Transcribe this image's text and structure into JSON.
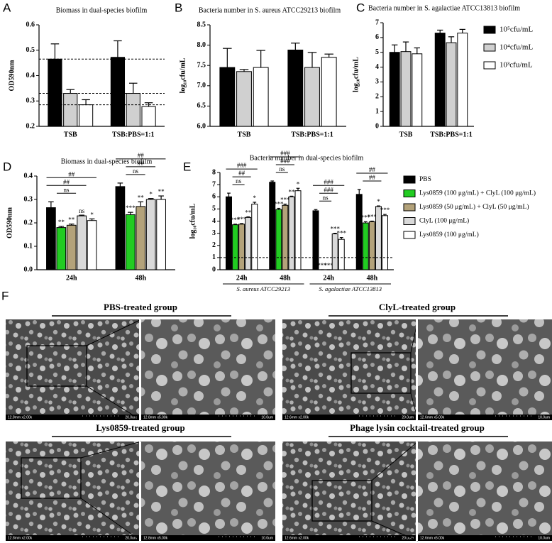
{
  "chart_data": [
    {
      "type": "bar",
      "panel_label": "A",
      "title": "Biomass in dual-species biofilm",
      "y_label": "OD590nm",
      "categories": [
        "TSB",
        "TSB:PBS=1:1"
      ],
      "series": [
        {
          "color": "#000000",
          "values": [
            0.465,
            0.472
          ],
          "errors": [
            0.06,
            0.065
          ]
        },
        {
          "color": "#d0d0d0",
          "values": [
            0.33,
            0.33
          ],
          "errors": [
            0.015,
            0.04
          ]
        },
        {
          "color": "#ffffff",
          "values": [
            0.285,
            0.278
          ],
          "errors": [
            0.02,
            0.015
          ]
        }
      ],
      "reference_lines": [
        0.465,
        0.33,
        0.285
      ],
      "ylim": [
        0.2,
        0.6
      ],
      "yticks": [
        0.2,
        0.3,
        0.4,
        0.5,
        0.6
      ]
    },
    {
      "type": "bar",
      "panel_label": "B",
      "title": "Bacteria number in S. aureus ATCC29213 biofilm",
      "y_label": "log₁₀cfu/mL",
      "categories": [
        "TSB",
        "TSB:PBS=1:1"
      ],
      "series": [
        {
          "color": "#000000",
          "values": [
            7.45,
            7.88
          ],
          "errors": [
            0.47,
            0.17
          ]
        },
        {
          "color": "#d0d0d0",
          "values": [
            7.35,
            7.45
          ],
          "errors": [
            0.05,
            0.37
          ]
        },
        {
          "color": "#ffffff",
          "values": [
            7.45,
            7.7
          ],
          "errors": [
            0.42,
            0.08
          ]
        }
      ],
      "ylim": [
        6.0,
        8.5
      ],
      "yticks": [
        {
          "value": 6.0,
          "label": "6.0"
        },
        {
          "value": 6.5,
          "label": "6.5"
        },
        {
          "value": 7.0,
          "label": "7.0"
        },
        {
          "value": 7.5,
          "label": "7.5"
        },
        {
          "value": 8.0,
          "label": "8.0"
        },
        {
          "value": 8.5,
          "label": "8.5"
        }
      ]
    },
    {
      "type": "bar",
      "panel_label": "C",
      "title": "Bacteria number in S. agalactiae ATCC13813 biofilm",
      "y_label": "log₁₀cfu/mL",
      "categories": [
        "TSB",
        "TSB:PBS=1:1"
      ],
      "series": [
        {
          "name": "10⁵cfu/mL",
          "color": "#000000",
          "values": [
            5.0,
            6.3
          ],
          "errors": [
            0.5,
            0.2
          ]
        },
        {
          "name": "10⁴cfu/mL",
          "color": "#d0d0d0",
          "values": [
            5.05,
            5.65
          ],
          "errors": [
            0.65,
            0.4
          ]
        },
        {
          "name": "10³cfu/mL",
          "color": "#ffffff",
          "values": [
            4.9,
            6.3
          ],
          "errors": [
            0.4,
            0.25
          ]
        }
      ],
      "legend": "right",
      "ylim": [
        0,
        7
      ],
      "yticks": [
        0,
        1,
        2,
        3,
        4,
        5,
        6,
        7
      ]
    },
    {
      "type": "bar",
      "panel_label": "D",
      "title": "Biomass in dual-species biofilm",
      "y_label": "OD590nm",
      "categories": [
        "24h",
        "48h"
      ],
      "series": [
        {
          "color": "#000000",
          "values": [
            0.265,
            0.355
          ],
          "errors": [
            0.025,
            0.015
          ],
          "significance": [
            null,
            null
          ]
        },
        {
          "color": "#22cc22",
          "values": [
            0.18,
            0.235
          ],
          "errors": [
            0.005,
            0.01
          ],
          "significance": [
            "**",
            "***"
          ]
        },
        {
          "color": "#b3a27a",
          "values": [
            0.19,
            0.27
          ],
          "errors": [
            0.005,
            0.02
          ],
          "significance": [
            "**",
            "**"
          ]
        },
        {
          "color": "#d9d9d9",
          "values": [
            0.23,
            0.3
          ],
          "errors": [
            0.003,
            0.004
          ],
          "significance": [
            "ns",
            "*"
          ]
        },
        {
          "color": "#ffffff",
          "values": [
            0.21,
            0.3
          ],
          "errors": [
            0.007,
            0.015
          ],
          "significance": [
            "*",
            "**"
          ]
        }
      ],
      "comparisons": [
        [
          {
            "pair": [
              1,
              2
            ],
            "label": "ns"
          },
          {
            "pair": [
              0,
              3
            ],
            "label": "##"
          },
          {
            "pair": [
              0,
              4
            ],
            "label": "##"
          }
        ],
        [
          {
            "pair": [
              1,
              2
            ],
            "label": "ns"
          },
          {
            "pair": [
              1,
              3
            ],
            "label": "##"
          },
          {
            "pair": [
              0,
              4
            ],
            "label": "##"
          }
        ]
      ],
      "ylim": [
        0,
        0.4
      ],
      "yticks": [
        {
          "value": 0,
          "label": "0.0"
        },
        0.1,
        0.2,
        0.3,
        0.4
      ]
    },
    {
      "type": "bar",
      "panel_label": "E",
      "title": "Bacteria number in dual-species biofilm",
      "y_label": "log₁₀cfu/mL",
      "categories": [
        "24h",
        "48h",
        "24h",
        "48h"
      ],
      "groups": [
        {
          "label": "S. aureus ATCC29213",
          "span": [
            0,
            1
          ]
        },
        {
          "label": "S. agalactiae ATCC13813",
          "span": [
            2,
            3
          ]
        }
      ],
      "series": [
        {
          "name": "PBS",
          "color": "#000000",
          "values": [
            6.0,
            7.2,
            4.85,
            6.2
          ],
          "errors": [
            0.3,
            0.1,
            0.1,
            0.4
          ],
          "significance": [
            null,
            null,
            null,
            null
          ]
        },
        {
          "name": "Lys0859 (100 μg/mL) + ClyL (100 μg/mL)",
          "color": "#22cc22",
          "values": [
            3.7,
            4.95,
            0,
            3.85
          ],
          "errors": [
            0.05,
            0.1,
            0,
            0.1
          ],
          "significance": [
            "***",
            "***",
            "***",
            "***"
          ]
        },
        {
          "name": "Lys0859 (50 μg/mL) + ClyL (50 μg/mL)",
          "color": "#b3a27a",
          "values": [
            3.75,
            5.3,
            0,
            3.95
          ],
          "errors": [
            0.05,
            0.1,
            0,
            0.05
          ],
          "significance": [
            "***",
            "***",
            "***",
            "***"
          ]
        },
        {
          "name": "ClyL (100 μg/mL)",
          "color": "#d9d9d9",
          "values": [
            4.3,
            6.0,
            2.95,
            5.2
          ],
          "errors": [
            0.05,
            0.05,
            0.05,
            0.05
          ],
          "significance": [
            "**",
            "**",
            "***",
            "*"
          ]
        },
        {
          "name": "Lys0859 (100 μg/mL)",
          "color": "#ffffff",
          "values": [
            5.4,
            6.5,
            2.5,
            4.45
          ],
          "errors": [
            0.15,
            0.2,
            0.15,
            0.1
          ],
          "significance": [
            "*",
            "*",
            "***",
            "***"
          ]
        }
      ],
      "comparisons": [
        [
          {
            "pair": [
              1,
              2
            ],
            "label": "ns"
          },
          {
            "pair": [
              1,
              3
            ],
            "label": "##"
          },
          {
            "pair": [
              0,
              4
            ],
            "label": "###"
          }
        ],
        [
          {
            "pair": [
              1,
              2
            ],
            "label": "ns"
          },
          {
            "pair": [
              1,
              3
            ],
            "label": "###"
          },
          {
            "pair": [
              0,
              4
            ],
            "label": "###"
          }
        ],
        [
          {
            "pair": [
              1,
              2
            ],
            "label": "ns"
          },
          {
            "pair": [
              1,
              3
            ],
            "label": "###"
          },
          {
            "pair": [
              0,
              4
            ],
            "label": "###"
          }
        ],
        [
          {
            "pair": [
              1,
              3
            ],
            "label": "##"
          },
          {
            "pair": [
              0,
              4
            ],
            "label": "##"
          }
        ]
      ],
      "reference_lines": [
        1
      ],
      "legend": "right",
      "ylim": [
        0,
        8
      ],
      "yticks": [
        0,
        1,
        2,
        3,
        4,
        5,
        6,
        7,
        8
      ]
    }
  ],
  "figure_f": {
    "panel_label": "F",
    "groups": [
      {
        "title": "PBS-treated group",
        "images": [
          {
            "info": "12.8mm x2.00k",
            "scale": "20.0um"
          },
          {
            "info": "12.8mm x5.00k",
            "scale": "10.0um"
          }
        ]
      },
      {
        "title": "ClyL-treated group",
        "images": [
          {
            "info": "12.6mm x2.00k",
            "scale": "20.0um"
          },
          {
            "info": "12.6mm x5.00k",
            "scale": "10.0um"
          }
        ]
      },
      {
        "title": "Lys0859-treated group",
        "images": [
          {
            "info": "12.8mm x2.00k",
            "scale": "20.0um"
          },
          {
            "info": "12.8mm x5.00k",
            "scale": "10.0um"
          }
        ]
      },
      {
        "title": "Phage lysin cocktail-treated group",
        "images": [
          {
            "info": "12.6mm x2.00k",
            "scale": "20.0um"
          },
          {
            "info": "12.6mm x5.00k",
            "scale": "10.0um"
          }
        ]
      }
    ]
  }
}
